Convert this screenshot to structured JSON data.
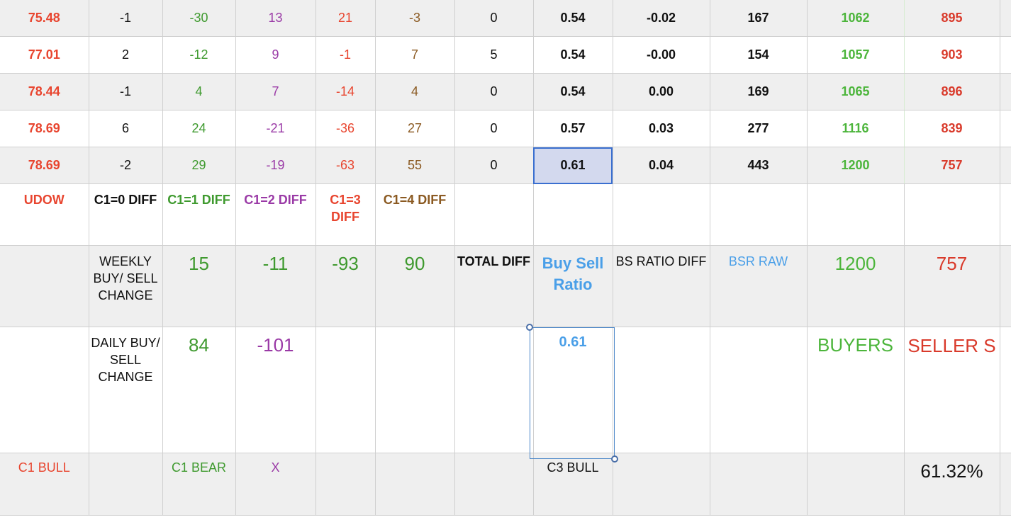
{
  "rows": [
    {
      "udow": "75.48",
      "c0": "-1",
      "c1": "-30",
      "c2": "13",
      "c3": "21",
      "c4": "-3",
      "total": "0",
      "bsr": "0.54",
      "bsdiff": "-0.02",
      "raw": "167",
      "buyers": "1062",
      "sellers": "895"
    },
    {
      "udow": "77.01",
      "c0": "2",
      "c1": "-12",
      "c2": "9",
      "c3": "-1",
      "c4": "7",
      "total": "5",
      "bsr": "0.54",
      "bsdiff": "-0.00",
      "raw": "154",
      "buyers": "1057",
      "sellers": "903"
    },
    {
      "udow": "78.44",
      "c0": "-1",
      "c1": "4",
      "c2": "7",
      "c3": "-14",
      "c4": "4",
      "total": "0",
      "bsr": "0.54",
      "bsdiff": "0.00",
      "raw": "169",
      "buyers": "1065",
      "sellers": "896"
    },
    {
      "udow": "78.69",
      "c0": "6",
      "c1": "24",
      "c2": "-21",
      "c3": "-36",
      "c4": "27",
      "total": "0",
      "bsr": "0.57",
      "bsdiff": "0.03",
      "raw": "277",
      "buyers": "1116",
      "sellers": "839"
    },
    {
      "udow": "78.69",
      "c0": "-2",
      "c1": "29",
      "c2": "-19",
      "c3": "-63",
      "c4": "55",
      "total": "0",
      "bsr": "0.61",
      "bsdiff": "0.04",
      "raw": "443",
      "buyers": "1200",
      "sellers": "757"
    }
  ],
  "headers": {
    "udow": "UDOW",
    "c0": "C1=0 DIFF",
    "c1": "C1=1 DIFF",
    "c2": "C1=2 DIFF",
    "c3": "C1=3 DIFF",
    "c4": "C1=4 DIFF"
  },
  "weekly": {
    "label": "WEEKLY BUY/ SELL CHANGE",
    "c1": "15",
    "c2": "-11",
    "c3": "-93",
    "c4": "90",
    "total_label": "TOTAL DIFF",
    "bsr_label": "Buy Sell Ratio",
    "bsdiff_label": "BS RATIO DIFF",
    "raw_label": "BSR RAW",
    "buyers": "1200",
    "sellers": "757"
  },
  "daily": {
    "label": "DAILY BUY/ SELL CHANGE",
    "c1": "84",
    "c2": "-101",
    "bsr": "0.61",
    "buyers_label": "BUYERS",
    "sellers_label": "SELLER S"
  },
  "footer": {
    "c1_bull": "C1 BULL",
    "c1_bear": "C1 BEAR",
    "x": "X",
    "c3_bull": "C3 BULL",
    "pct": "61.32%"
  },
  "colors": {
    "red": "#e8452f",
    "green": "#3f9a2f",
    "purple": "#9a3aa6",
    "brown": "#8b5a22",
    "blue": "#4a9fe8",
    "selection": "#3a6fd0"
  }
}
